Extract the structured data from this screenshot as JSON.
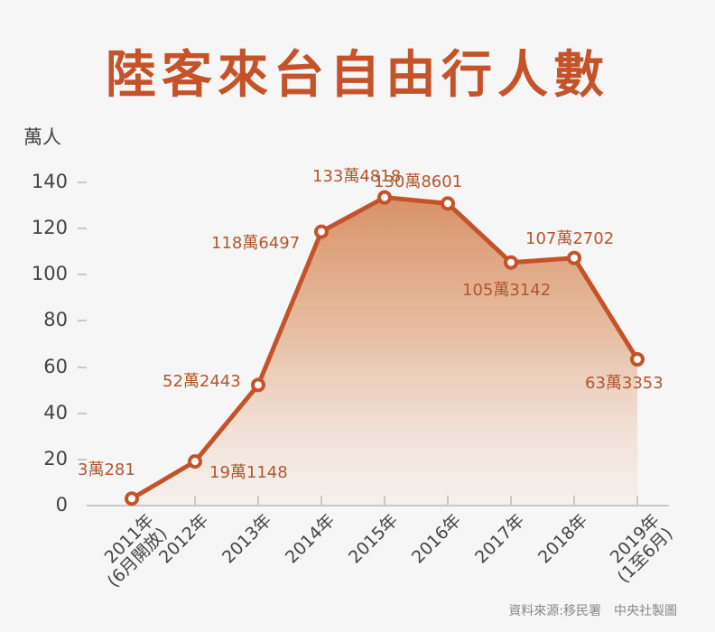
{
  "title": "陸客來台自由行人數",
  "y_unit": "萬人",
  "source": "資料來源:移民署　中央社製圖",
  "colors": {
    "accent": "#c4532a",
    "fill_top": "#d9946a",
    "axis": "#c8c8c8",
    "background": "#f6f6f6"
  },
  "y_ticks": [
    "0",
    "20",
    "40",
    "60",
    "80",
    "100",
    "120",
    "140"
  ],
  "x_labels": [
    "2011年\n(6月開放)",
    "2012年",
    "2013年",
    "2014年",
    "2015年",
    "2016年",
    "2017年",
    "2018年",
    "2019年\n(1至6月)"
  ],
  "data_labels": [
    "3萬281",
    "19萬1148",
    "52萬2443",
    "118萬6497",
    "133萬4818",
    "130萬8601",
    "105萬3142",
    "107萬2702",
    "63萬3353"
  ],
  "chart_data": {
    "type": "area",
    "title": "陸客來台自由行人數",
    "xlabel": "",
    "ylabel": "萬人",
    "categories": [
      "2011年(6月開放)",
      "2012年",
      "2013年",
      "2014年",
      "2015年",
      "2016年",
      "2017年",
      "2018年",
      "2019年(1至6月)"
    ],
    "values": [
      3.0281,
      19.1148,
      52.2443,
      118.6497,
      133.4818,
      130.8601,
      105.3142,
      107.2702,
      63.3353
    ],
    "data_labels": [
      "3萬281",
      "19萬1148",
      "52萬2443",
      "118萬6497",
      "133萬4818",
      "130萬8601",
      "105萬3142",
      "107萬2702",
      "63萬3353"
    ],
    "ylim": [
      0,
      140
    ],
    "yticks": [
      0,
      20,
      40,
      60,
      80,
      100,
      120,
      140
    ],
    "grid": false,
    "legend": "none",
    "source": "資料來源:移民署　中央社製圖"
  }
}
